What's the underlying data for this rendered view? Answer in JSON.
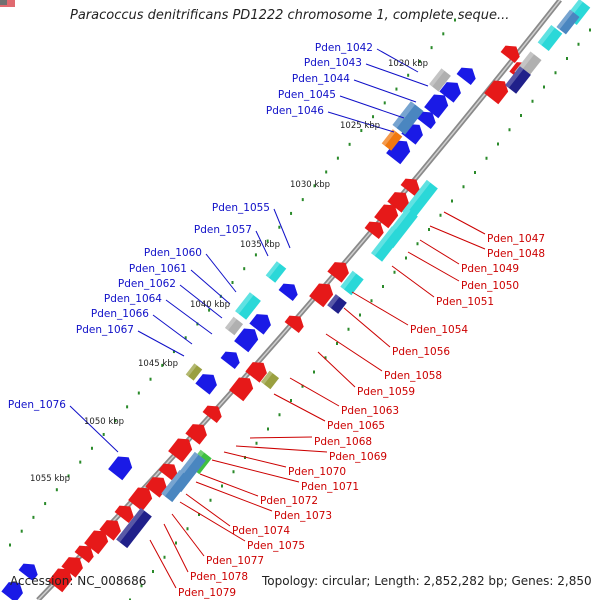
{
  "title": "Paracoccus denitrificans PD1222 chromosome 1, complete seque...",
  "footer": {
    "accession": "Accession: NC_008686",
    "summary": "Topology: circular; Length: 2,852,282 bp; Genes: 2,850"
  },
  "colors": {
    "forward_label": "#1010c8",
    "reverse_label": "#cc0000",
    "backbone": "#8a8a8a",
    "tick": "#2a8a2a",
    "gene_red": "#e61919",
    "gene_blue": "#1a1ae6",
    "gene_cyan": "#2ad8d8",
    "gene_steel": "#4a86c0",
    "gene_gray": "#b0b0b0",
    "gene_navy": "#20208a",
    "gene_orange": "#f07810",
    "gene_olive": "#9aa040",
    "gene_green": "#40c040"
  },
  "kbp_labels": [
    "1020 kbp",
    "1025 kbp",
    "1030 kbp",
    "1035 kbp",
    "1040 kbp",
    "1045 kbp",
    "1050 kbp",
    "1055 kbp"
  ],
  "forward_genes": [
    "Pden_1042",
    "Pden_1043",
    "Pden_1044",
    "Pden_1045",
    "Pden_1046",
    "Pden_1055",
    "Pden_1057",
    "Pden_1060",
    "Pden_1061",
    "Pden_1062",
    "Pden_1064",
    "Pden_1066",
    "Pden_1067",
    "Pden_1076"
  ],
  "reverse_genes": [
    "Pden_1047",
    "Pden_1048",
    "Pden_1049",
    "Pden_1050",
    "Pden_1051",
    "Pden_1054",
    "Pden_1056",
    "Pden_1058",
    "Pden_1059",
    "Pden_1063",
    "Pden_1065",
    "Pden_1068",
    "Pden_1069",
    "Pden_1070",
    "Pden_1071",
    "Pden_1072",
    "Pden_1073",
    "Pden_1074",
    "Pden_1075",
    "Pden_1077",
    "Pden_1078",
    "Pden_1079"
  ]
}
